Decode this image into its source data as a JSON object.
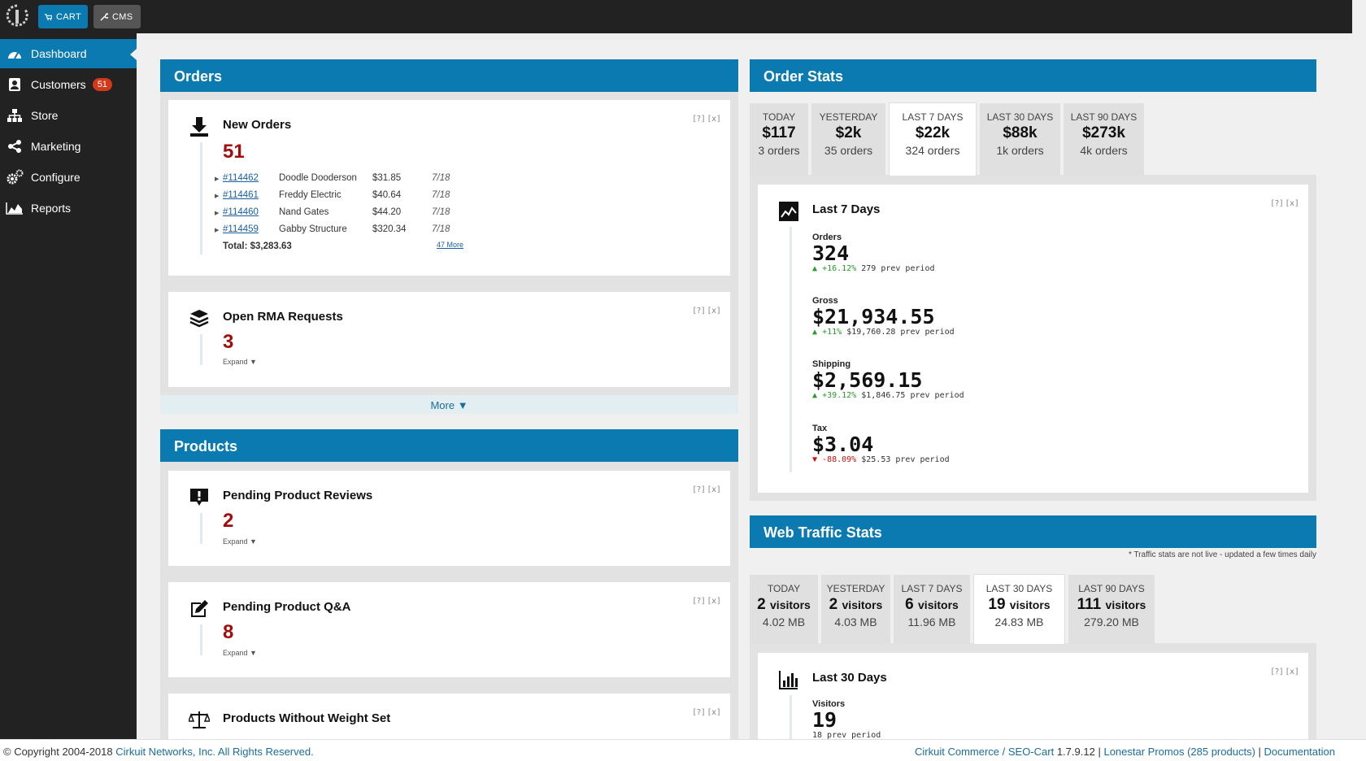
{
  "topbar": {
    "cart_label": "CART",
    "cms_label": "CMS"
  },
  "sidebar": {
    "items": [
      {
        "label": "Dashboard",
        "icon": "dashboard-icon"
      },
      {
        "label": "Customers",
        "icon": "customers-icon",
        "badge": "51"
      },
      {
        "label": "Store",
        "icon": "sitemap-icon"
      },
      {
        "label": "Marketing",
        "icon": "share-icon"
      },
      {
        "label": "Configure",
        "icon": "gears-icon"
      },
      {
        "label": "Reports",
        "icon": "area-chart-icon"
      }
    ]
  },
  "controls": {
    "help": "[?]",
    "close": "[x]"
  },
  "orders": {
    "title": "Orders",
    "new_orders": {
      "title": "New Orders",
      "count": "51",
      "rows": [
        {
          "id": "#114462",
          "name": "Doodle Dooderson",
          "amount": "$31.85",
          "date": "7/18"
        },
        {
          "id": "#114461",
          "name": "Freddy Electric",
          "amount": "$40.64",
          "date": "7/18"
        },
        {
          "id": "#114460",
          "name": "Nand Gates",
          "amount": "$44.20",
          "date": "7/18"
        },
        {
          "id": "#114459",
          "name": "Gabby Structure",
          "amount": "$320.34",
          "date": "7/18"
        }
      ],
      "total": "Total: $3,283.63",
      "more_link": "47 More"
    },
    "rma": {
      "title": "Open RMA Requests",
      "count": "3",
      "expand": "Expand"
    },
    "more": "More"
  },
  "products": {
    "title": "Products",
    "reviews": {
      "title": "Pending Product Reviews",
      "count": "2",
      "expand": "Expand"
    },
    "qa": {
      "title": "Pending Product Q&A",
      "count": "8",
      "expand": "Expand"
    },
    "weight": {
      "title": "Products Without Weight Set"
    }
  },
  "order_stats": {
    "title": "Order Stats",
    "tabs": [
      {
        "label": "TODAY",
        "value": "$117",
        "sub": "3 orders"
      },
      {
        "label": "YESTERDAY",
        "value": "$2k",
        "sub": "35 orders"
      },
      {
        "label": "LAST 7 DAYS",
        "value": "$22k",
        "sub": "324 orders",
        "active": true
      },
      {
        "label": "LAST 30 DAYS",
        "value": "$88k",
        "sub": "1k orders"
      },
      {
        "label": "LAST 90 DAYS",
        "value": "$273k",
        "sub": "4k orders"
      }
    ],
    "detail": {
      "title": "Last 7 Days",
      "stats": [
        {
          "label": "Orders",
          "value": "324",
          "change": "+16.12%",
          "prev": "279 prev period",
          "dir": "up"
        },
        {
          "label": "Gross",
          "value": "$21,934.55",
          "change": "+11%",
          "prev": "$19,760.28 prev period",
          "dir": "up"
        },
        {
          "label": "Shipping",
          "value": "$2,569.15",
          "change": "+39.12%",
          "prev": "$1,846.75 prev period",
          "dir": "up"
        },
        {
          "label": "Tax",
          "value": "$3.04",
          "change": "-88.09%",
          "prev": "$25.53 prev period",
          "dir": "down"
        }
      ]
    }
  },
  "web_traffic": {
    "title": "Web Traffic Stats",
    "note": "* Traffic stats are not live - updated a few times daily",
    "tabs": [
      {
        "label": "TODAY",
        "value": "2",
        "unit": "visitors",
        "sub": "4.02 MB"
      },
      {
        "label": "YESTERDAY",
        "value": "2",
        "unit": "visitors",
        "sub": "4.03 MB"
      },
      {
        "label": "LAST 7 DAYS",
        "value": "6",
        "unit": "visitors",
        "sub": "11.96 MB"
      },
      {
        "label": "LAST 30 DAYS",
        "value": "19",
        "unit": "visitors",
        "sub": "24.83 MB",
        "active": true
      },
      {
        "label": "LAST 90 DAYS",
        "value": "111",
        "unit": "visitors",
        "sub": "279.20 MB"
      }
    ],
    "detail": {
      "title": "Last 30 Days",
      "visitors_label": "Visitors",
      "visitors_value": "19",
      "prev": "18 prev period"
    }
  },
  "footer": {
    "copyright": "© Copyright 2004-2018",
    "company": "Cirkuit Networks, Inc. All Rights Reserved.",
    "product": "Cirkuit Commerce / SEO-Cart",
    "version": "1.7.9.12",
    "sep": "|",
    "store": "Lonestar Promos (285 products)",
    "docs": "Documentation"
  }
}
